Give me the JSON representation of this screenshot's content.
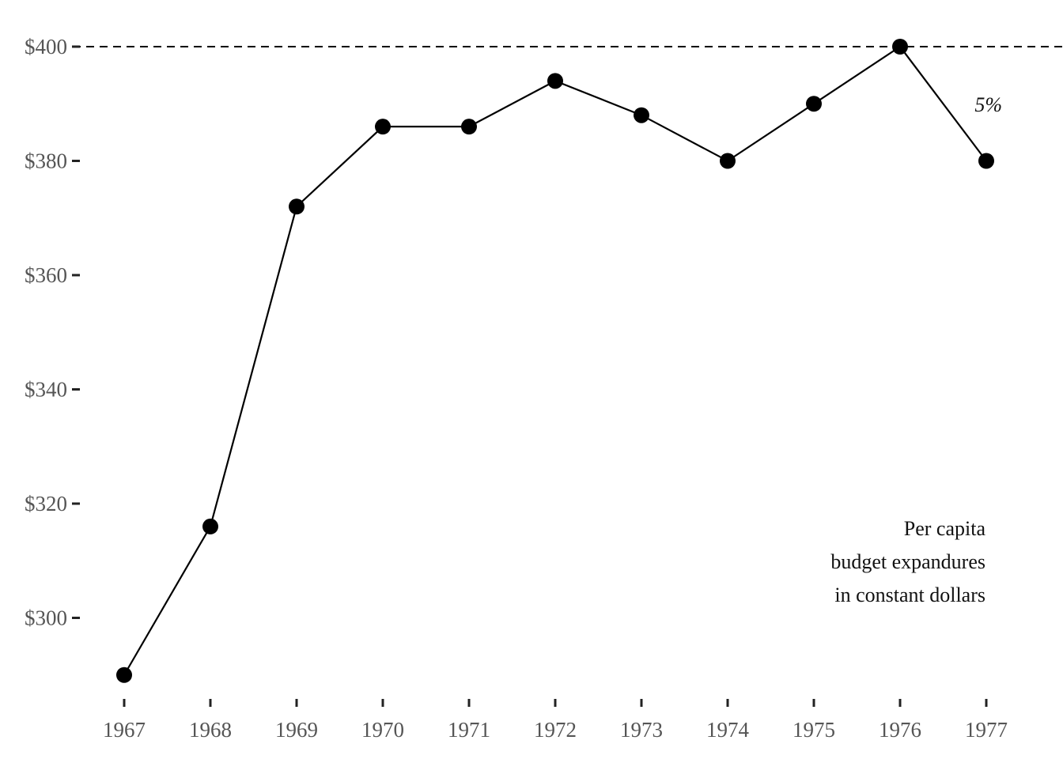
{
  "chart_data": {
    "type": "line",
    "title": "",
    "xlabel": "",
    "ylabel": "",
    "x": [
      "1967",
      "1968",
      "1969",
      "1970",
      "1971",
      "1972",
      "1973",
      "1974",
      "1975",
      "1976",
      "1977"
    ],
    "y": [
      290,
      316,
      372,
      386,
      386,
      394,
      388,
      380,
      390,
      400,
      380
    ],
    "ylim": [
      285,
      405
    ],
    "yticks": [
      300,
      320,
      340,
      360,
      380,
      400
    ],
    "ytick_labels": [
      "$300",
      "$320",
      "$340",
      "$360",
      "$380",
      "$400"
    ],
    "reference_line": {
      "y": 400,
      "style": "dashed"
    },
    "grid": false,
    "annotations": {
      "percent": {
        "text": "5%",
        "near_x": "1977"
      },
      "caption": [
        "Per capita",
        "budget expandures",
        "in constant dollars"
      ]
    },
    "colors": {
      "line": "#000000",
      "points": "#000000",
      "tick_labels": "#555555"
    }
  }
}
